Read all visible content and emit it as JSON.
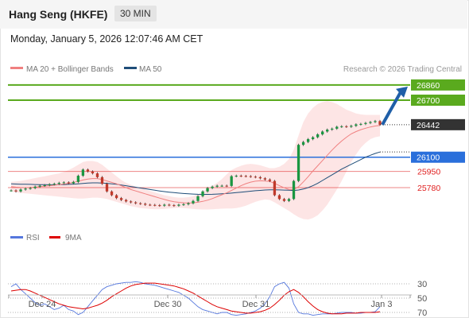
{
  "header": {
    "title": "Hang Seng (HKFE)",
    "interval": "30 MIN",
    "datetime": "Monday, January 5, 2026 12:07:46 AM CET"
  },
  "legend": {
    "ma20_bb": "MA 20 + Bollinger Bands",
    "ma50": "MA 50",
    "credit": "Research © 2026 Trading Central",
    "colors": {
      "ma20": "#f08080",
      "ma50": "#1f4e79",
      "bands": "#fcdcdc"
    }
  },
  "rsi_legend": {
    "rsi": "RSI",
    "ma9": "9MA",
    "colors": {
      "rsi": "#5577dd",
      "ma9": "#dd0000"
    }
  },
  "chart_data": [
    {
      "type": "candlestick",
      "x_tick_labels": [
        "Dec 24",
        "Dec 30",
        "Dec 31",
        "Jan 3"
      ],
      "current_price": "26442",
      "levels": [
        {
          "label": "26860",
          "value": 26860,
          "kind": "resistance",
          "color": "#5aaa1e"
        },
        {
          "label": "26700",
          "value": 26700,
          "kind": "resistance",
          "color": "#5aaa1e"
        },
        {
          "label": "26100",
          "value": 26100,
          "kind": "support",
          "color": "#2a6fdb"
        },
        {
          "label": "25950",
          "value": 25950,
          "kind": "support",
          "color": "#e02020"
        },
        {
          "label": "25780",
          "value": 25780,
          "kind": "support",
          "color": "#e02020"
        }
      ],
      "close": [
        25750,
        25740,
        25760,
        25770,
        25775,
        25790,
        25800,
        25805,
        25815,
        25820,
        25830,
        25835,
        25825,
        25840,
        25905,
        25970,
        25950,
        25930,
        25890,
        25820,
        25740,
        25700,
        25670,
        25650,
        25635,
        25625,
        25615,
        25610,
        25600,
        25598,
        25595,
        25590,
        25600,
        25595,
        25590,
        25600,
        25605,
        25615,
        25640,
        25690,
        25740,
        25775,
        25790,
        25800,
        25800,
        25798,
        25900,
        25905,
        25902,
        25900,
        25895,
        25890,
        25878,
        25865,
        25850,
        25700,
        25660,
        25640,
        25660,
        25850,
        26230,
        26260,
        26290,
        26310,
        26340,
        26370,
        26390,
        26400,
        26420,
        26425,
        26420,
        26430,
        26445,
        26450,
        26460,
        26470,
        26480,
        26442
      ],
      "ma20": [
        25790,
        25785,
        25782,
        25780,
        25782,
        25785,
        25790,
        25795,
        25800,
        25805,
        25812,
        25818,
        25825,
        25835,
        25845,
        25860,
        25870,
        25875,
        25875,
        25865,
        25850,
        25835,
        25820,
        25800,
        25780,
        25760,
        25745,
        25730,
        25715,
        25700,
        25685,
        25670,
        25655,
        25642,
        25632,
        25625,
        25620,
        25618,
        25620,
        25626,
        25635,
        25648,
        25665,
        25685,
        25705,
        25725,
        25750,
        25775,
        25800,
        25822,
        25838,
        25848,
        25852,
        25850,
        25845,
        25825,
        25800,
        25778,
        25760,
        25760,
        25790,
        25840,
        25895,
        25955,
        26010,
        26065,
        26120,
        26175,
        26225,
        26270,
        26310,
        26345,
        26370,
        26390,
        26405,
        26418,
        26428,
        26435
      ],
      "ma50": [
        25820,
        25818,
        25816,
        25815,
        25814,
        25813,
        25812,
        25811,
        25810,
        25810,
        25811,
        25812,
        25814,
        25817,
        25820,
        25824,
        25828,
        25830,
        25830,
        25828,
        25825,
        25820,
        25815,
        25808,
        25800,
        25792,
        25784,
        25776,
        25768,
        25760,
        25752,
        25745,
        25738,
        25732,
        25727,
        25722,
        25718,
        25715,
        25712,
        25710,
        25709,
        25709,
        25710,
        25712,
        25715,
        25718,
        25722,
        25727,
        25732,
        25737,
        25742,
        25747,
        25751,
        25755,
        25757,
        25757,
        25756,
        25754,
        25752,
        25750,
        25755,
        25765,
        25780,
        25800,
        25825,
        25855,
        25885,
        25915,
        25945,
        25975,
        26000,
        26025,
        26050,
        26075,
        26100,
        26120,
        26140,
        26155
      ],
      "bb_upper": [
        25840,
        25845,
        25850,
        25860,
        25870,
        25880,
        25890,
        25900,
        25910,
        25920,
        25930,
        25945,
        25965,
        25990,
        26020,
        26050,
        26060,
        26060,
        26050,
        26020,
        25980,
        25940,
        25900,
        25860,
        25830,
        25810,
        25790,
        25775,
        25760,
        25745,
        25730,
        25715,
        25700,
        25690,
        25680,
        25675,
        25675,
        25680,
        25690,
        25710,
        25740,
        25770,
        25800,
        25830,
        25870,
        25920,
        25965,
        25990,
        26010,
        26025,
        26030,
        26025,
        26015,
        26000,
        25985,
        25985,
        26000,
        26030,
        26080,
        26180,
        26330,
        26470,
        26560,
        26620,
        26660,
        26680,
        26690,
        26680,
        26660,
        26630,
        26600,
        26580,
        26560,
        26550,
        26545,
        26545,
        26545,
        26545
      ],
      "bb_lower": [
        25740,
        25730,
        25725,
        25720,
        25715,
        25710,
        25705,
        25700,
        25695,
        25690,
        25685,
        25680,
        25675,
        25670,
        25665,
        25665,
        25670,
        25675,
        25675,
        25670,
        25660,
        25645,
        25630,
        25615,
        25600,
        25585,
        25575,
        25565,
        25560,
        25555,
        25553,
        25553,
        25555,
        25560,
        25565,
        25568,
        25565,
        25560,
        25555,
        25552,
        25550,
        25550,
        25552,
        25555,
        25558,
        25560,
        25560,
        25565,
        25575,
        25590,
        25610,
        25630,
        25645,
        25655,
        25650,
        25625,
        25595,
        25565,
        25535,
        25500,
        25470,
        25450,
        25445,
        25460,
        25490,
        25540,
        25600,
        25680,
        25760,
        25850,
        25950,
        26050,
        26130,
        26200,
        26250,
        26290,
        26310,
        26320
      ],
      "forecast_arrow": {
        "from": 26442,
        "to": 26860
      }
    },
    {
      "type": "line",
      "title": "RSI",
      "y_tick_labels": [
        "70",
        "50",
        "30"
      ],
      "ylim": [
        20,
        80
      ],
      "series": [
        {
          "name": "RSI",
          "values": [
            34,
            30,
            38,
            44,
            50,
            56,
            60,
            58,
            62,
            66,
            64,
            60,
            66,
            68,
            73,
            70,
            62,
            54,
            46,
            38,
            34,
            32,
            30,
            29,
            28,
            28,
            27,
            28,
            30,
            31,
            32,
            34,
            36,
            38,
            40,
            42,
            46,
            50,
            56,
            62,
            66,
            68,
            70,
            72,
            70,
            70,
            73,
            74,
            73,
            72,
            70,
            68,
            64,
            58,
            48,
            34,
            30,
            28,
            36,
            58,
            70,
            72,
            72,
            74,
            73,
            72,
            72,
            72,
            71,
            70,
            70,
            70,
            71,
            71,
            70,
            70,
            69,
            62
          ]
        },
        {
          "name": "9MA",
          "values": [
            40,
            39,
            38,
            38,
            40,
            43,
            46,
            49,
            52,
            55,
            58,
            60,
            62,
            63,
            64,
            65,
            64,
            62,
            60,
            57,
            53,
            48,
            44,
            40,
            36,
            33,
            31,
            30,
            29,
            29,
            29,
            30,
            31,
            32,
            33,
            35,
            37,
            40,
            43,
            47,
            51,
            55,
            59,
            62,
            64,
            66,
            68,
            69,
            70,
            71,
            71,
            70,
            69,
            67,
            64,
            59,
            53,
            46,
            41,
            38,
            42,
            48,
            55,
            61,
            66,
            69,
            71,
            72,
            72,
            72,
            71,
            71,
            71,
            70,
            70,
            70,
            70,
            69
          ]
        }
      ]
    }
  ]
}
